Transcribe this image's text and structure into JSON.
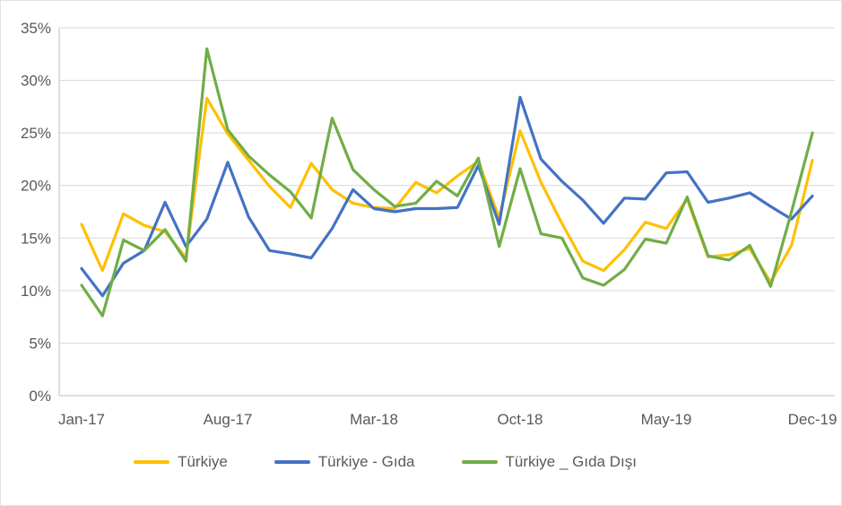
{
  "chart_data": {
    "type": "line",
    "title": "",
    "xlabel": "",
    "ylabel": "",
    "grid": "horizontal",
    "legend_position": "bottom",
    "x": [
      "Jan-17",
      "Feb-17",
      "Mar-17",
      "Apr-17",
      "May-17",
      "Jun-17",
      "Jul-17",
      "Aug-17",
      "Sep-17",
      "Oct-17",
      "Nov-17",
      "Dec-17",
      "Jan-18",
      "Feb-18",
      "Mar-18",
      "Apr-18",
      "May-18",
      "Jun-18",
      "Jul-18",
      "Aug-18",
      "Sep-18",
      "Oct-18",
      "Nov-18",
      "Dec-18",
      "Jan-19",
      "Feb-19",
      "Mar-19",
      "Apr-19",
      "May-19",
      "Jun-19",
      "Jul-19",
      "Aug-19",
      "Sep-19",
      "Oct-19",
      "Nov-19",
      "Dec-19"
    ],
    "x_tick_labels": [
      "Jan-17",
      "Aug-17",
      "Mar-18",
      "Oct-18",
      "May-19",
      "Dec-19"
    ],
    "x_tick_indices": [
      0,
      7,
      14,
      21,
      28,
      35
    ],
    "y_axis": {
      "min": 0,
      "max": 35,
      "step": 5,
      "format": "percent",
      "tick_labels": [
        "0%",
        "5%",
        "10%",
        "15%",
        "20%",
        "25%",
        "30%",
        "35%"
      ]
    },
    "colors": {
      "gridline": "#D9D9D9",
      "axis_line": "#BFBFBF",
      "tick_text": "#595959"
    },
    "series": [
      {
        "name": "Türkiye",
        "color": "#FFC000",
        "values": [
          16.3,
          11.9,
          17.3,
          16.2,
          15.6,
          13.1,
          28.3,
          24.9,
          22.4,
          19.9,
          17.9,
          22.1,
          19.6,
          18.3,
          17.9,
          17.8,
          20.3,
          19.3,
          20.9,
          22.3,
          16.9,
          25.2,
          20.3,
          16.4,
          12.8,
          11.9,
          13.9,
          16.5,
          15.9,
          18.7,
          13.2,
          13.4,
          14.0,
          10.8,
          14.3,
          22.4
        ]
      },
      {
        "name": "Türkiye - Gıda",
        "color": "#4472C4",
        "values": [
          12.1,
          9.5,
          12.6,
          13.8,
          18.4,
          14.2,
          16.8,
          22.2,
          17.0,
          13.8,
          13.5,
          13.1,
          15.9,
          19.6,
          17.8,
          17.5,
          17.8,
          17.8,
          17.9,
          21.9,
          16.3,
          28.4,
          22.5,
          20.4,
          18.6,
          16.4,
          18.8,
          18.7,
          21.2,
          21.3,
          18.4,
          18.8,
          19.3,
          18.0,
          16.8,
          19.0
        ]
      },
      {
        "name": "Türkiye _ Gıda Dışı",
        "color": "#70AD47",
        "values": [
          10.5,
          7.6,
          14.8,
          13.8,
          15.8,
          12.8,
          33.0,
          25.3,
          22.8,
          21.0,
          19.4,
          16.9,
          26.4,
          21.5,
          19.6,
          18.0,
          18.3,
          20.4,
          19.0,
          22.6,
          14.2,
          21.6,
          15.4,
          15.0,
          11.2,
          10.5,
          12.0,
          14.9,
          14.5,
          18.9,
          13.3,
          12.9,
          14.3,
          10.4,
          17.5,
          25.0
        ]
      }
    ]
  }
}
